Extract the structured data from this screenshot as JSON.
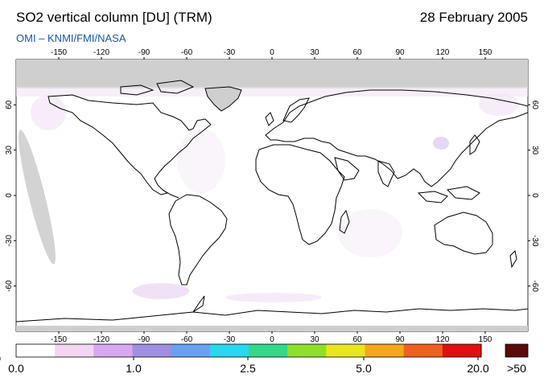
{
  "title": "SO2 vertical column [DU] (TRM)",
  "date": "28 February 2005",
  "credit": "OMI  –  KNMI/FMI/NASA",
  "map": {
    "lon_ticks": [
      "-150",
      "-120",
      "-90",
      "-60",
      "-30",
      "0",
      "30",
      "60",
      "90",
      "120",
      "150"
    ],
    "lat_ticks_left": [
      "60",
      "30",
      "0",
      "-30",
      "-60"
    ],
    "lat_ticks_right": [
      "60",
      "30",
      "0",
      "-30",
      "-60"
    ]
  },
  "colorbar": {
    "labels": [
      "0.0",
      "1.0",
      "2.5",
      "5.0",
      "20.0"
    ],
    "overflow_label": ">50",
    "colors": [
      "#ffffff",
      "#f3d6f3",
      "#d8a8ee",
      "#9f8fe0",
      "#6aa0f0",
      "#27d8ef",
      "#32d98a",
      "#8fe02a",
      "#e8e61e",
      "#f5a81a",
      "#f06020",
      "#e01010"
    ],
    "overflow_color": "#5a0a0a"
  }
}
